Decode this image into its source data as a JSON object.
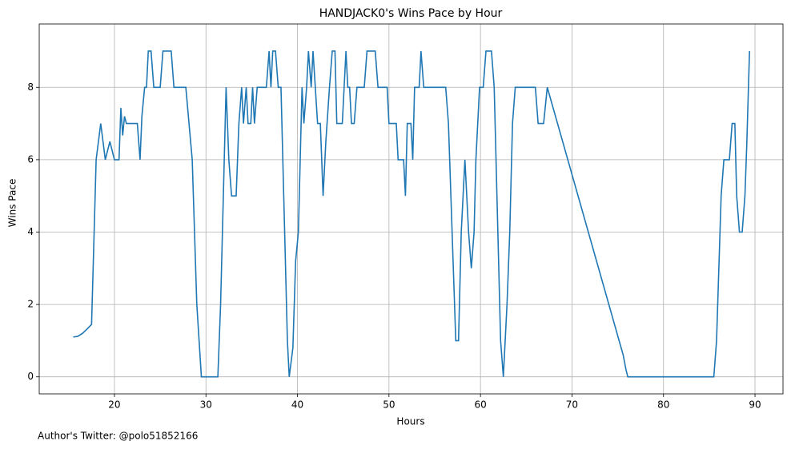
{
  "chart_data": {
    "type": "line",
    "title": "HANDJACK0's Wins Pace by Hour",
    "x_label": "Hours",
    "y_label": "Wins Pace",
    "footnote": "Author's Twitter: @polo51852166",
    "x": [
      15.5,
      16.0,
      16.5,
      17.0,
      17.5,
      18.0,
      18.5,
      19.0,
      19.5,
      20.0,
      20.5,
      20.7,
      20.9,
      21.1,
      21.3,
      22.5,
      22.8,
      23.0,
      23.3,
      23.5,
      23.7,
      24.0,
      24.3,
      25.0,
      25.3,
      26.2,
      26.5,
      27.8,
      28.5,
      29.0,
      29.5,
      31.3,
      31.6,
      32.2,
      32.5,
      32.8,
      33.3,
      33.6,
      33.9,
      34.1,
      34.4,
      34.6,
      34.9,
      35.1,
      35.3,
      35.6,
      36.6,
      36.9,
      37.1,
      37.3,
      37.6,
      37.9,
      38.2,
      38.5,
      38.9,
      39.1,
      39.5,
      39.8,
      40.1,
      40.5,
      40.7,
      41.0,
      41.2,
      41.5,
      41.7,
      42.2,
      42.5,
      42.8,
      43.1,
      43.5,
      43.8,
      44.1,
      44.3,
      44.9,
      45.1,
      45.3,
      45.5,
      45.7,
      45.9,
      46.2,
      46.5,
      47.3,
      47.6,
      48.5,
      48.8,
      49.8,
      50.0,
      50.8,
      51.0,
      51.6,
      51.8,
      52.0,
      52.4,
      52.6,
      52.8,
      53.3,
      53.5,
      53.8,
      56.2,
      56.5,
      57.3,
      57.6,
      57.9,
      58.1,
      58.3,
      58.7,
      59.0,
      59.3,
      59.5,
      59.9,
      60.3,
      60.6,
      61.2,
      61.5,
      61.8,
      62.2,
      62.5,
      62.9,
      63.2,
      63.5,
      63.8,
      66.0,
      66.3,
      66.9,
      67.3,
      75.6,
      75.9,
      76.1,
      85.5,
      85.8,
      86.3,
      86.6,
      87.2,
      87.5,
      87.8,
      88.0,
      88.3,
      88.6,
      88.9,
      89.1,
      89.4
    ],
    "series": [
      {
        "name": "Wins Pace",
        "color": "#1f77b4",
        "values": [
          1.1,
          1.12,
          1.2,
          1.32,
          1.45,
          6.0,
          7.0,
          6.0,
          6.5,
          6.0,
          6.0,
          7.43,
          6.67,
          7.2,
          7.0,
          7.0,
          6.0,
          7.2,
          8.0,
          8.0,
          9.0,
          9.0,
          8.0,
          8.0,
          9.0,
          9.0,
          8.0,
          8.0,
          6.0,
          2.0,
          0,
          0,
          2.0,
          8.0,
          6.0,
          5.0,
          5.0,
          7.0,
          8.0,
          7.0,
          8.0,
          7.0,
          7.0,
          8.0,
          7.0,
          8.0,
          8.0,
          9.0,
          8.0,
          9.0,
          9.0,
          8.0,
          8.0,
          5.0,
          1.0,
          0,
          0.8,
          3.2,
          4.0,
          8.0,
          7.0,
          8.0,
          9.0,
          8.0,
          9.0,
          7.0,
          7.0,
          5.0,
          6.5,
          8.0,
          9.0,
          9.0,
          7.0,
          7.0,
          8.0,
          9.0,
          8.0,
          8.0,
          7.0,
          7.0,
          8.0,
          8.0,
          9.0,
          9.0,
          8.0,
          8.0,
          7.0,
          7.0,
          6.0,
          6.0,
          5.0,
          7.0,
          7.0,
          6.0,
          8.0,
          8.0,
          9.0,
          8.0,
          8.0,
          7.0,
          1.0,
          1.0,
          4.0,
          5.0,
          6.0,
          4.0,
          3.0,
          4.0,
          6.0,
          8.0,
          8.0,
          9.0,
          9.0,
          8.0,
          5.0,
          1.0,
          0,
          2.0,
          4.0,
          7.0,
          8.0,
          8.0,
          7.0,
          7.0,
          8.0,
          0.6,
          0.2,
          0,
          0,
          1.0,
          5.0,
          6.0,
          6.0,
          7.0,
          7.0,
          5.0,
          4.0,
          4.0,
          5.0,
          6.4,
          9.0
        ]
      }
    ],
    "xlim": [
      11.78,
      93.06
    ],
    "ylim": [
      -0.47,
      9.75
    ],
    "xticks": [
      20,
      30,
      40,
      50,
      60,
      70,
      80,
      90
    ],
    "yticks": [
      0,
      2,
      4,
      6,
      8
    ],
    "grid": true
  }
}
